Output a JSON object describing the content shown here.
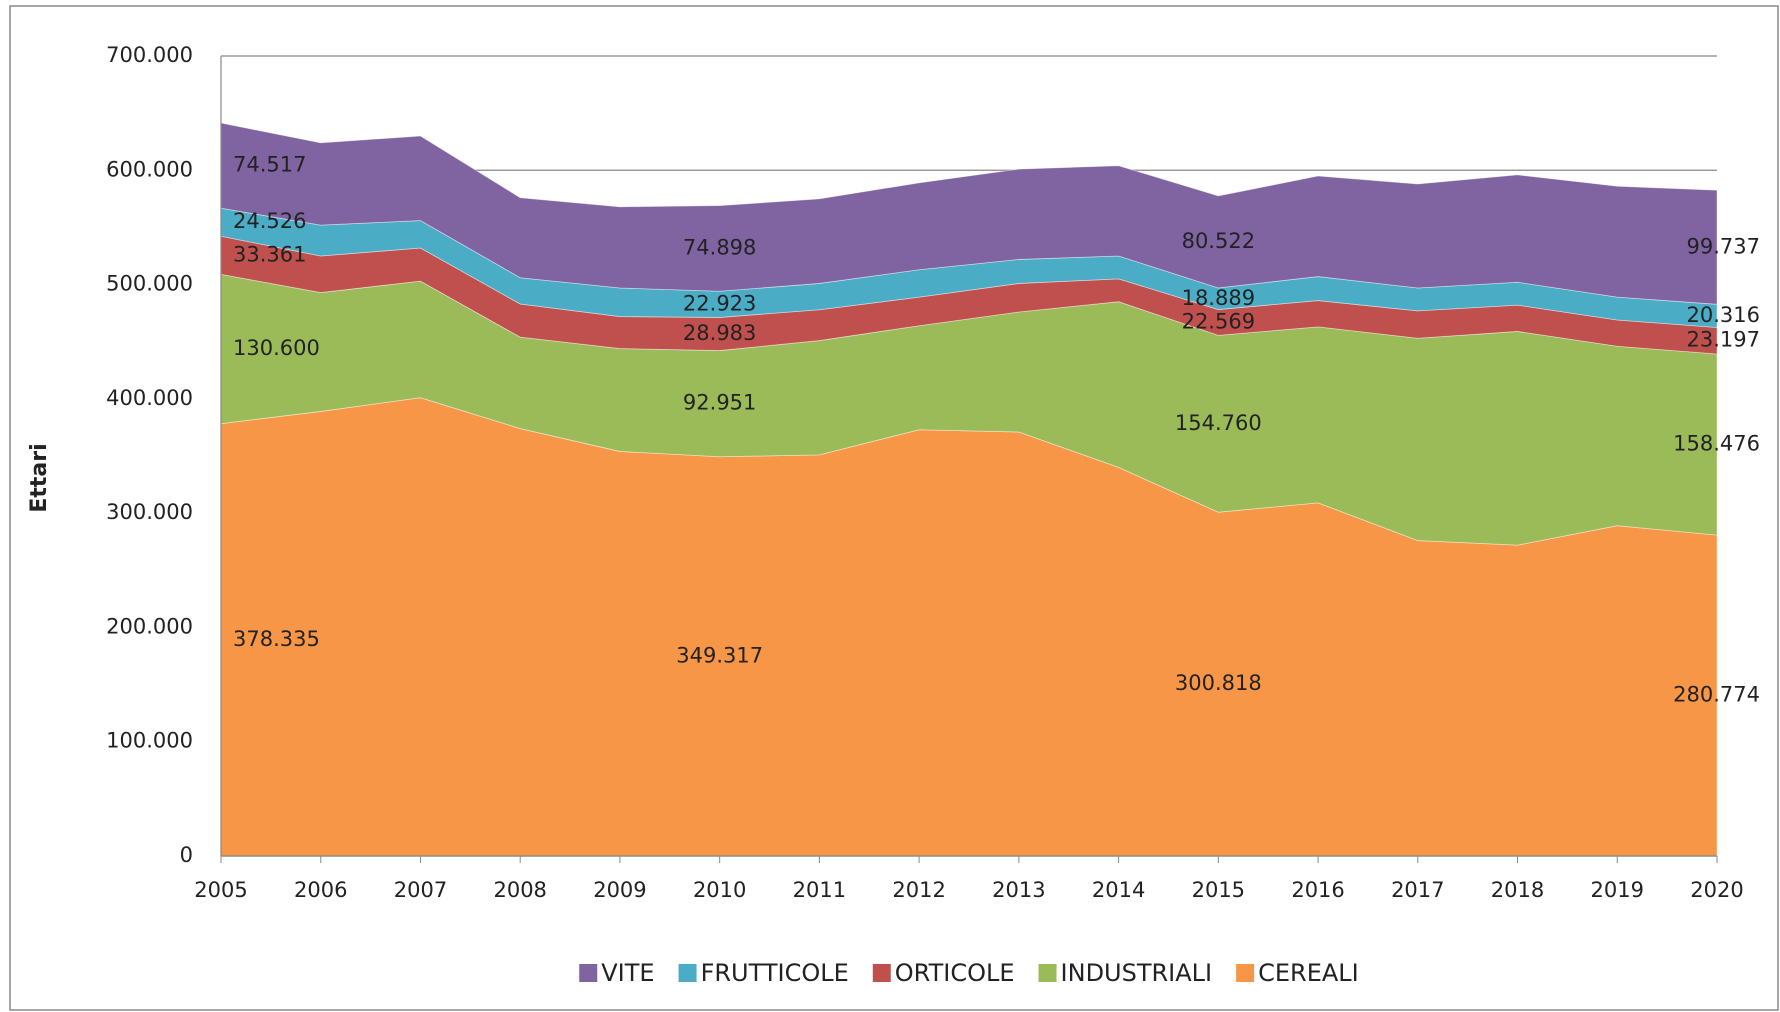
{
  "chart_data": {
    "type": "stacked-area",
    "y_label": "Ettari",
    "categories": [
      "2005",
      "2006",
      "2007",
      "2008",
      "2009",
      "2010",
      "2011",
      "2012",
      "2013",
      "2014",
      "2015",
      "2016",
      "2017",
      "2018",
      "2019",
      "2020"
    ],
    "ylim": [
      0,
      700000
    ],
    "yticks": [
      0,
      {
        "value": 100000,
        "label": "100.000"
      },
      {
        "value": 200000,
        "label": "200.000"
      },
      {
        "value": 300000,
        "label": "300.000"
      },
      {
        "value": 400000,
        "label": "400.000"
      },
      {
        "value": 500000,
        "label": "500.000"
      },
      {
        "value": 600000,
        "label": "600.000"
      },
      {
        "value": 700000,
        "label": "700.000"
      }
    ],
    "grid": true,
    "series": [
      {
        "name": "VITE",
        "color": "#8064a2",
        "values": [
          74517,
          72000,
          74000,
          70000,
          71000,
          74898,
          74000,
          76000,
          79000,
          79000,
          80522,
          88000,
          91000,
          94000,
          97000,
          99737
        ],
        "value_labels": [
          "74.517",
          null,
          null,
          null,
          null,
          "74.898",
          null,
          null,
          null,
          null,
          "80.522",
          null,
          null,
          null,
          null,
          "99.737"
        ]
      },
      {
        "name": "FRUTTICOLE",
        "color": "#4bacc6",
        "values": [
          24526,
          27000,
          24000,
          23000,
          25000,
          22923,
          23000,
          24000,
          21000,
          20000,
          18889,
          21000,
          20000,
          20000,
          20000,
          20316
        ],
        "value_labels": [
          "24.526",
          null,
          null,
          null,
          null,
          "22.923",
          null,
          null,
          null,
          null,
          "18.889",
          null,
          null,
          null,
          null,
          "20.316"
        ]
      },
      {
        "name": "ORTICOLE",
        "color": "#c0504d",
        "values": [
          33361,
          32000,
          29000,
          29000,
          28000,
          28983,
          27000,
          25000,
          25000,
          20000,
          22569,
          23000,
          24000,
          23000,
          23000,
          23197
        ],
        "value_labels": [
          "33.361",
          null,
          null,
          null,
          null,
          "28.983",
          null,
          null,
          null,
          null,
          "22.569",
          null,
          null,
          null,
          null,
          "23.197"
        ]
      },
      {
        "name": "INDUSTRIALI",
        "color": "#9bbb59",
        "values": [
          130600,
          104000,
          102000,
          80000,
          90000,
          92951,
          100000,
          91000,
          105000,
          145000,
          154760,
          154000,
          177000,
          187000,
          157000,
          158476
        ],
        "value_labels": [
          "130.600",
          null,
          null,
          null,
          null,
          "92.951",
          null,
          null,
          null,
          null,
          "154.760",
          null,
          null,
          null,
          null,
          "158.476"
        ]
      },
      {
        "name": "CEREALI",
        "color": "#f79646",
        "values": [
          378335,
          389000,
          401000,
          374000,
          354000,
          349317,
          351000,
          373000,
          371000,
          340000,
          300818,
          309000,
          276000,
          272000,
          289000,
          280774
        ],
        "value_labels": [
          "378.335",
          null,
          null,
          null,
          null,
          "349.317",
          null,
          null,
          null,
          null,
          "300.818",
          null,
          null,
          null,
          null,
          "280.774"
        ]
      }
    ]
  }
}
